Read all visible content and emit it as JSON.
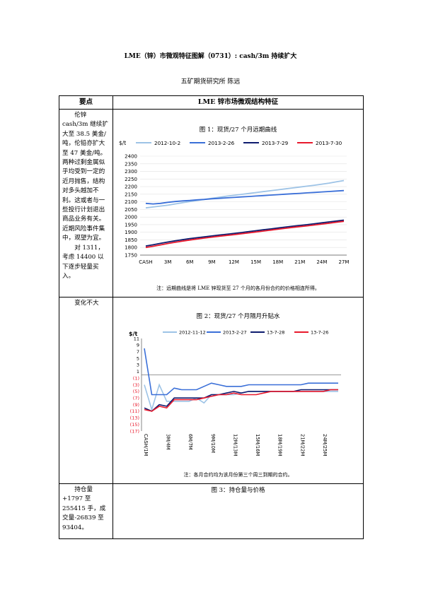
{
  "header": {
    "title": "LME（锌）市微观特征图解（0731）: cash/3m 持续扩大",
    "author": "五矿期货研究所    陈远"
  },
  "table": {
    "col1_header": "要点",
    "col2_header": "LME 锌市场微观结构特征",
    "row1_text": [
      "伦锌 cash/3m 继续扩大至 38.5 美金/吨，伦铅亦扩大至 47 美金/吨。两种过剩金属似乎均受到一定的近月抛售，结构对多头越加不利。这或者与一些投行计划退出商品业务有关。近期风险事件集中，观望为宜。",
      "对 1311，考虑 14400 以下逐步轻量买入。"
    ],
    "row2_text": "变化不大",
    "row3_text": "持仓量+1797 至 255415 手，成交量-26839 至 93404。"
  },
  "chart1": {
    "title": "图 1：现货/27 个月远期曲线",
    "note": "注：远期曲线是将 LME 锌现货至 27 个月的各月份合约的价格相连所得。",
    "yunit": "$/t",
    "chart_data": {
      "type": "line",
      "x": [
        "CASH",
        "1M",
        "2M",
        "3M",
        "4M",
        "5M",
        "6M",
        "7M",
        "8M",
        "9M",
        "10M",
        "11M",
        "12M",
        "13M",
        "14M",
        "15M",
        "16M",
        "17M",
        "18M",
        "19M",
        "20M",
        "21M",
        "22M",
        "23M",
        "24M",
        "25M",
        "26M",
        "27M"
      ],
      "xticks": [
        "CASH",
        "3M",
        "6M",
        "9M",
        "12M",
        "15M",
        "18M",
        "21M",
        "24M",
        "27M"
      ],
      "yticks": [
        1750,
        1800,
        1850,
        1900,
        1950,
        2000,
        2050,
        2100,
        2150,
        2200,
        2250,
        2300,
        2350,
        2400
      ],
      "ylim": [
        1750,
        2400
      ],
      "series": [
        {
          "name": "2012-10-2",
          "color": "#9dc3e6",
          "values": [
            2060,
            2066,
            2072,
            2078,
            2086,
            2094,
            2102,
            2109,
            2116,
            2123,
            2130,
            2137,
            2143,
            2149,
            2155,
            2161,
            2167,
            2173,
            2179,
            2185,
            2191,
            2197,
            2203,
            2209,
            2216,
            2223,
            2232,
            2240
          ]
        },
        {
          "name": "2013-2-26",
          "color": "#3a6fd8",
          "values": [
            2090,
            2086,
            2090,
            2097,
            2102,
            2106,
            2109,
            2113,
            2116,
            2120,
            2123,
            2126,
            2129,
            2132,
            2135,
            2138,
            2141,
            2144,
            2147,
            2150,
            2153,
            2156,
            2159,
            2162,
            2165,
            2168,
            2171,
            2174
          ]
        },
        {
          "name": "2013-7-29",
          "color": "#0d1b6e",
          "values": [
            1810,
            1818,
            1827,
            1836,
            1844,
            1851,
            1858,
            1864,
            1870,
            1876,
            1882,
            1887,
            1892,
            1898,
            1904,
            1910,
            1916,
            1922,
            1928,
            1934,
            1940,
            1945,
            1950,
            1956,
            1962,
            1968,
            1974,
            1980
          ]
        },
        {
          "name": "2013-7-30",
          "color": "#e8192c",
          "values": [
            1800,
            1808,
            1817,
            1826,
            1834,
            1842,
            1849,
            1856,
            1862,
            1868,
            1874,
            1879,
            1884,
            1890,
            1896,
            1902,
            1908,
            1914,
            1920,
            1926,
            1932,
            1937,
            1942,
            1948,
            1954,
            1960,
            1966,
            1972
          ]
        }
      ]
    }
  },
  "chart2": {
    "title": "图 2：现货/27 个月隔月升贴水",
    "note": "注：各月合约均为该月份第三个周三到期的合约。",
    "yunit": "$/t",
    "chart_data": {
      "type": "line",
      "x": [
        "CASH/1M",
        "1M/2M",
        "2M/3M",
        "3M/4M",
        "4M/5M",
        "5M/6M",
        "6M/7M",
        "7M/8M",
        "8M/9M",
        "9M/10M",
        "10M/11M",
        "11M/12M",
        "12M/13M",
        "13M/14M",
        "14M/15M",
        "15M/16M",
        "16M/17M",
        "17M/18M",
        "18M/19M",
        "19M/20M",
        "20M/21M",
        "21M/22M",
        "22M/23M",
        "23M/24M",
        "24M/25M",
        "25M/26M",
        "26M/27M"
      ],
      "xticks": [
        "CASH/1M",
        "3M/4M",
        "6M/7M",
        "9M/10M",
        "12M/13M",
        "15M/16M",
        "18M/19M",
        "21M/22M",
        "24M/25M"
      ],
      "yticks": [
        11,
        9,
        7,
        5,
        3,
        1,
        -1,
        -3,
        -5,
        -7,
        -9,
        -11,
        -13,
        -15,
        -17
      ],
      "ytick_labels": [
        "11",
        "9",
        "7",
        "5",
        "3",
        "1",
        "(1)",
        "(3)",
        "(5)",
        "(7)",
        "(9)",
        "(11)",
        "(13)",
        "(15)",
        "(17)"
      ],
      "ylim": [
        -17,
        11
      ],
      "series": [
        {
          "name": "2012-11-12",
          "color": "#9dc3e6",
          "values": [
            -3,
            -10.5,
            -3,
            -8,
            -8,
            -8,
            -8,
            -7,
            -8.5,
            -6,
            -6,
            -6,
            -6,
            -5.5,
            -5,
            -5,
            -5,
            -5,
            -5,
            -5,
            -5,
            -5,
            -5,
            -5,
            -5,
            -5,
            -5
          ]
        },
        {
          "name": "2013-2-27",
          "color": "#3a6fd8",
          "values": [
            8,
            -6,
            -6,
            -6,
            -4,
            -4.5,
            -4.5,
            -4.5,
            -3.5,
            -2.5,
            -3,
            -3.5,
            -3.5,
            -3.5,
            -3,
            -3,
            -3,
            -3,
            -3,
            -3,
            -3,
            -3,
            -2.5,
            -2.5,
            -2.5,
            -2.5,
            -2.5
          ]
        },
        {
          "name": "13-7-28",
          "color": "#0d1b6e",
          "values": [
            -10,
            -11,
            -9,
            -9.5,
            -7,
            -7,
            -7,
            -7,
            -7,
            -6,
            -6,
            -5.5,
            -5,
            -5.5,
            -5,
            -5,
            -5,
            -5,
            -5,
            -5,
            -5,
            -4.5,
            -4.5,
            -4.5,
            -4.5,
            -4.5,
            -4.5
          ]
        },
        {
          "name": "13-7-26",
          "color": "#e8192c",
          "values": [
            -10.5,
            -11,
            -9.5,
            -10,
            -7.5,
            -7.5,
            -7.5,
            -7.5,
            -7,
            -6.5,
            -6,
            -6,
            -5.5,
            -6,
            -6,
            -6,
            -5.5,
            -5,
            -5,
            -5,
            -5,
            -5,
            -5,
            -5,
            -5,
            -4.5,
            -4.5
          ]
        }
      ]
    }
  },
  "chart3": {
    "title": "图 3：持仓量与价格"
  }
}
